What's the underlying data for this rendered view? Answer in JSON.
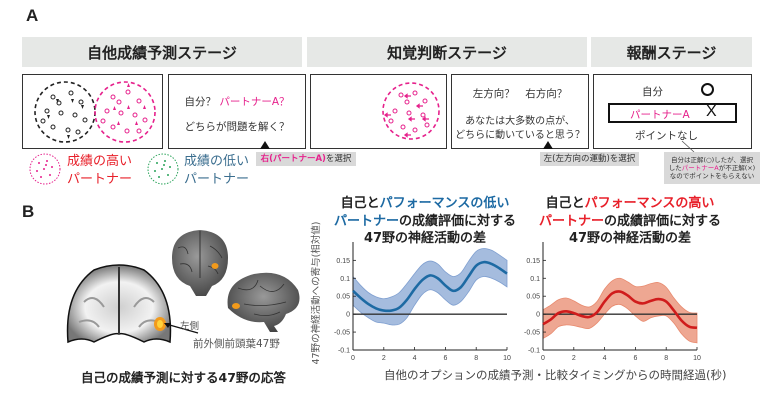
{
  "panel_a": {
    "label": "A",
    "stages": [
      {
        "label": "自他成績予測ステージ"
      },
      {
        "label": "知覚判断ステージ"
      },
      {
        "label": "報酬ステージ"
      }
    ],
    "box2": {
      "line1_prefix": "自分？",
      "line1_partner": "パートナーA？",
      "line2": "どちらが問題を解く？"
    },
    "box4": {
      "line1": "左方向？　右方向？",
      "line2": "あなたは大多数の点が、",
      "line3": "どちらに動いていると思う？"
    },
    "box5": {
      "self_label": "自分",
      "self_mark": "O",
      "partner_label": "パートナーA",
      "partner_mark": "X",
      "result": "ポイントなし"
    },
    "notes": {
      "choice_right_highlight": "右(パートナーA)",
      "choice_right_suffix": "を選択",
      "choice_left": "左(左方向の運動)を選択",
      "reward_line1": "自分は正解(○)したが、選択",
      "reward_line2_prefix": "した",
      "reward_line2_partner": "パートナーA",
      "reward_line2_suffix": "が不正解(×)",
      "reward_line3": "なのでポイントをもらえない"
    },
    "legend": [
      {
        "line1": "成績の高い",
        "line2": "パートナー",
        "color": "#e8202a",
        "dot_color": "#e6218c"
      },
      {
        "line1": "成績の低い",
        "line2": "パートナー",
        "color": "#3b6e8f",
        "dot_color": "#2aa35a"
      }
    ]
  },
  "panel_b": {
    "label": "B",
    "brain": {
      "side_label": "左側",
      "region_label": "前外側前頭葉47野",
      "caption": "自己の成績予測に対する47野の応答"
    },
    "shared_ylabel": "47野の神経活動への寄与(相対値)",
    "shared_xlabel": "自他のオプションの成績予測・比較タイミングからの時間経過(秒)",
    "chart1_title": {
      "l1_prefix": "自己と",
      "l1_colored": "パフォーマンスの低い",
      "l2_colored": "パートナー",
      "l2_suffix": "の成績評価に対する",
      "l3": "47野の神経活動の差"
    },
    "chart2_title": {
      "l1_prefix": "自己と",
      "l1_colored": "パフォーマンスの高い",
      "l2_colored": "パートナー",
      "l2_suffix": "の成績評価に対する",
      "l3": "47野の神経活動の差"
    },
    "yticks": [
      "0.15",
      "0.1",
      "0.05",
      "0",
      "-0.05",
      "-0.1"
    ],
    "xticks": [
      "0",
      "2",
      "4",
      "6",
      "8",
      "10"
    ]
  },
  "chart_data": [
    {
      "type": "line",
      "title": "自己とパフォーマンスの低いパートナーの成績評価に対する47野の神経活動の差",
      "xlabel": "自他のオプションの成績予測・比較タイミングからの時間経過(秒)",
      "ylabel": "47野の神経活動への寄与(相対値)",
      "xlim": [
        0,
        10
      ],
      "ylim": [
        -0.1,
        0.19
      ],
      "x": [
        0,
        0.5,
        1,
        1.5,
        2,
        2.5,
        3,
        3.5,
        4,
        4.5,
        5,
        5.5,
        6,
        6.5,
        7,
        7.5,
        8,
        8.5,
        9,
        9.5,
        10
      ],
      "series": [
        {
          "name": "mean",
          "color": "#1d6aa3",
          "values": [
            0.065,
            0.045,
            0.028,
            0.016,
            0.01,
            0.01,
            0.018,
            0.04,
            0.07,
            0.095,
            0.108,
            0.1,
            0.08,
            0.065,
            0.075,
            0.105,
            0.135,
            0.145,
            0.14,
            0.128,
            0.113
          ]
        },
        {
          "name": "upper",
          "color": "#9fb6dc",
          "values": [
            0.105,
            0.08,
            0.06,
            0.048,
            0.043,
            0.048,
            0.06,
            0.085,
            0.113,
            0.138,
            0.148,
            0.14,
            0.118,
            0.105,
            0.115,
            0.147,
            0.175,
            0.183,
            0.178,
            0.165,
            0.15
          ]
        },
        {
          "name": "lower",
          "color": "#9fb6dc",
          "values": [
            0.025,
            0.005,
            -0.01,
            -0.022,
            -0.025,
            -0.03,
            -0.028,
            -0.01,
            0.025,
            0.055,
            0.068,
            0.06,
            0.04,
            0.025,
            0.035,
            0.062,
            0.095,
            0.105,
            0.1,
            0.09,
            0.076
          ]
        }
      ],
      "grid": false
    },
    {
      "type": "line",
      "title": "自己とパフォーマンスの高いパートナーの成績評価に対する47野の神経活動の差",
      "xlabel": "自他のオプションの成績予測・比較タイミングからの時間経過(秒)",
      "ylabel": "47野の神経活動への寄与(相対値)",
      "xlim": [
        0,
        10
      ],
      "ylim": [
        -0.1,
        0.19
      ],
      "x": [
        0,
        0.5,
        1,
        1.5,
        2,
        2.5,
        3,
        3.5,
        4,
        4.5,
        5,
        5.5,
        6,
        6.5,
        7,
        7.5,
        8,
        8.5,
        9,
        9.5,
        10
      ],
      "series": [
        {
          "name": "mean",
          "color": "#d01c1c",
          "values": [
            -0.028,
            -0.015,
            0.003,
            0.008,
            0.003,
            -0.005,
            -0.008,
            0.005,
            0.035,
            0.058,
            0.063,
            0.052,
            0.035,
            0.03,
            0.037,
            0.042,
            0.035,
            0.01,
            -0.018,
            -0.035,
            -0.038
          ]
        },
        {
          "name": "upper",
          "color": "#efa690",
          "values": [
            0.012,
            0.025,
            0.04,
            0.045,
            0.037,
            0.025,
            0.02,
            0.035,
            0.07,
            0.093,
            0.1,
            0.09,
            0.077,
            0.078,
            0.085,
            0.088,
            0.075,
            0.045,
            0.02,
            0.005,
            0.003
          ]
        },
        {
          "name": "lower",
          "color": "#efa690",
          "values": [
            -0.068,
            -0.055,
            -0.035,
            -0.03,
            -0.032,
            -0.037,
            -0.04,
            -0.025,
            0.0,
            0.022,
            0.027,
            0.015,
            -0.005,
            -0.02,
            -0.01,
            -0.005,
            -0.005,
            -0.025,
            -0.055,
            -0.075,
            -0.08
          ]
        }
      ],
      "grid": false
    }
  ]
}
